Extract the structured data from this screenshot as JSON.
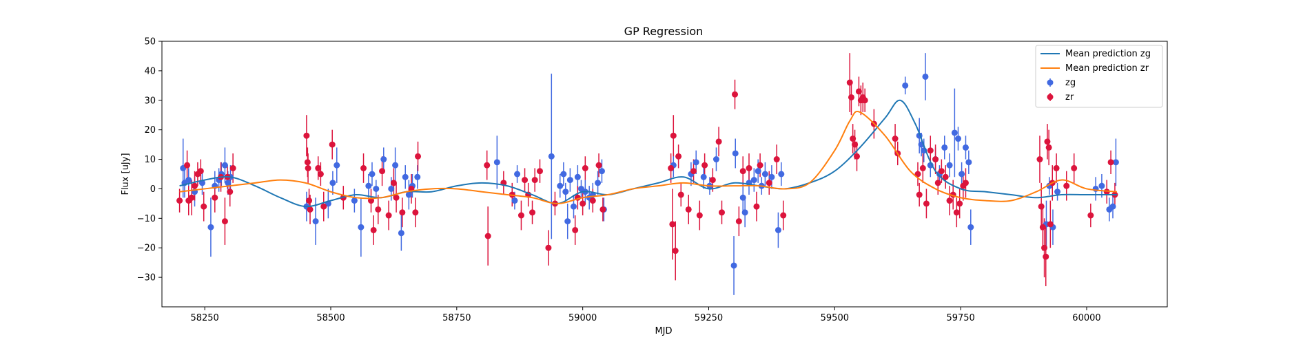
{
  "chart_data": {
    "type": "scatter",
    "title": "GP Regression",
    "xlabel": "MJD",
    "ylabel": "Flux [uJy]",
    "xlim": [
      58165,
      60160
    ],
    "ylim": [
      -40,
      50
    ],
    "xticks": [
      58250,
      58500,
      58750,
      59000,
      59250,
      59500,
      59750,
      60000
    ],
    "yticks": [
      -30,
      -20,
      -10,
      0,
      10,
      20,
      30,
      40,
      50
    ],
    "grid": false,
    "legend": {
      "position": "top-right",
      "entries": [
        "Mean prediction zg",
        "Mean prediction zr",
        "zg",
        "zr"
      ]
    },
    "colors": {
      "mean_zg": "#1f77b4",
      "mean_zr": "#ff7f0e",
      "zg": "#4169e1",
      "zr": "#dc143c"
    },
    "lines": [
      {
        "name": "Mean prediction zg",
        "color": "#1f77b4",
        "x": [
          58200,
          58250,
          58300,
          58350,
          58400,
          58450,
          58500,
          58550,
          58600,
          58650,
          58700,
          58750,
          58800,
          58850,
          58900,
          58950,
          59000,
          59050,
          59100,
          59150,
          59200,
          59250,
          59300,
          59350,
          59400,
          59450,
          59500,
          59550,
          59600,
          59630,
          59660,
          59700,
          59750,
          59800,
          59850,
          59900,
          59950,
          60000,
          60060
        ],
        "y": [
          1,
          3,
          4,
          1,
          -3,
          -6,
          -4,
          -2,
          -3,
          -1,
          -1,
          1,
          2,
          1,
          -2,
          -5,
          -1,
          -2,
          0,
          2,
          4,
          0,
          2,
          1,
          0,
          2,
          6,
          14,
          24,
          30,
          22,
          6,
          0,
          -1,
          -2,
          -3,
          -2,
          -2,
          -2
        ]
      },
      {
        "name": "Mean prediction zr",
        "color": "#ff7f0e",
        "x": [
          58200,
          58250,
          58300,
          58350,
          58400,
          58450,
          58500,
          58550,
          58600,
          58650,
          58700,
          58750,
          58800,
          58850,
          58900,
          58950,
          59000,
          59050,
          59100,
          59150,
          59200,
          59250,
          59300,
          59350,
          59400,
          59450,
          59500,
          59530,
          59550,
          59600,
          59650,
          59700,
          59750,
          59800,
          59850,
          59900,
          59950,
          60000,
          60060
        ],
        "y": [
          -1,
          0,
          1,
          2,
          3,
          2,
          -1,
          -3,
          -3,
          -1,
          0,
          0,
          -1,
          -2,
          -3,
          -5,
          -3,
          -2,
          0,
          1,
          2,
          1,
          1,
          1,
          0,
          2,
          13,
          23,
          26,
          18,
          6,
          0,
          -3,
          -4,
          -4,
          -1,
          3,
          0,
          -1
        ]
      }
    ],
    "series": [
      {
        "name": "zg",
        "color": "#4169e1",
        "points": [
          [
            58207,
            7,
            10
          ],
          [
            58210,
            2,
            5
          ],
          [
            58218,
            3,
            4
          ],
          [
            58230,
            -1,
            5
          ],
          [
            58245,
            2,
            4
          ],
          [
            58262,
            -13,
            10
          ],
          [
            58270,
            1,
            5
          ],
          [
            58278,
            3,
            4
          ],
          [
            58283,
            5,
            4
          ],
          [
            58290,
            8,
            6
          ],
          [
            58296,
            2,
            4
          ],
          [
            58301,
            4,
            4
          ],
          [
            58452,
            -6,
            5
          ],
          [
            58470,
            -11,
            8
          ],
          [
            58495,
            -5,
            5
          ],
          [
            58504,
            2,
            4
          ],
          [
            58512,
            8,
            6
          ],
          [
            58547,
            -4,
            4
          ],
          [
            58560,
            -13,
            10
          ],
          [
            58575,
            1,
            4
          ],
          [
            58582,
            5,
            4
          ],
          [
            58590,
            0,
            3
          ],
          [
            58605,
            10,
            4
          ],
          [
            58620,
            0,
            4
          ],
          [
            58628,
            8,
            6
          ],
          [
            58640,
            -15,
            6
          ],
          [
            58648,
            4,
            4
          ],
          [
            58655,
            -2,
            5
          ],
          [
            58662,
            1,
            4
          ],
          [
            58672,
            4,
            4
          ],
          [
            58830,
            9,
            9
          ],
          [
            58865,
            -4,
            3
          ],
          [
            58870,
            5,
            3
          ],
          [
            58938,
            11,
            28
          ],
          [
            58955,
            1,
            4
          ],
          [
            58962,
            5,
            4
          ],
          [
            58966,
            -1,
            3
          ],
          [
            58970,
            -11,
            6
          ],
          [
            58975,
            3,
            4
          ],
          [
            58982,
            -6,
            4
          ],
          [
            58990,
            4,
            4
          ],
          [
            58997,
            0,
            3
          ],
          [
            59005,
            -1,
            4
          ],
          [
            59013,
            -3,
            4
          ],
          [
            59020,
            -2,
            4
          ],
          [
            59030,
            2,
            4
          ],
          [
            59038,
            6,
            4
          ],
          [
            59042,
            -7,
            4
          ],
          [
            59180,
            8,
            4
          ],
          [
            59215,
            5,
            4
          ],
          [
            59225,
            9,
            4
          ],
          [
            59240,
            4,
            4
          ],
          [
            59252,
            1,
            3
          ],
          [
            59265,
            10,
            4
          ],
          [
            59300,
            -26,
            10
          ],
          [
            59303,
            12,
            5
          ],
          [
            59318,
            -3,
            5
          ],
          [
            59322,
            -8,
            5
          ],
          [
            59330,
            2,
            4
          ],
          [
            59340,
            3,
            4
          ],
          [
            59348,
            6,
            4
          ],
          [
            59355,
            1,
            3
          ],
          [
            59362,
            5,
            4
          ],
          [
            59375,
            4,
            4
          ],
          [
            59388,
            -14,
            6
          ],
          [
            59394,
            5,
            4
          ],
          [
            59640,
            35,
            3
          ],
          [
            59680,
            38,
            8
          ],
          [
            59668,
            18,
            6
          ],
          [
            59672,
            15,
            4
          ],
          [
            59677,
            13,
            4
          ],
          [
            59690,
            8,
            4
          ],
          [
            59700,
            10,
            4
          ],
          [
            59708,
            5,
            3
          ],
          [
            59718,
            14,
            4
          ],
          [
            59728,
            8,
            4
          ],
          [
            59738,
            19,
            15
          ],
          [
            59745,
            17,
            4
          ],
          [
            59752,
            5,
            4
          ],
          [
            59760,
            14,
            4
          ],
          [
            59766,
            9,
            4
          ],
          [
            59770,
            -13,
            6
          ],
          [
            59920,
            -12,
            8
          ],
          [
            59926,
            1,
            3
          ],
          [
            59933,
            -13,
            6
          ],
          [
            59942,
            -1,
            3
          ],
          [
            60018,
            0,
            4
          ],
          [
            60030,
            1,
            4
          ],
          [
            60045,
            -7,
            4
          ],
          [
            60052,
            -6,
            4
          ],
          [
            60058,
            9,
            8
          ]
        ]
      },
      {
        "name": "zr",
        "color": "#dc143c",
        "points": [
          [
            58200,
            -4,
            4
          ],
          [
            58215,
            8,
            5
          ],
          [
            58218,
            -4,
            5
          ],
          [
            58224,
            -3,
            6
          ],
          [
            58230,
            1,
            5
          ],
          [
            58236,
            5,
            4
          ],
          [
            58242,
            6,
            4
          ],
          [
            58248,
            -6,
            5
          ],
          [
            58270,
            -3,
            5
          ],
          [
            58282,
            4,
            5
          ],
          [
            58290,
            -11,
            8
          ],
          [
            58295,
            4,
            4
          ],
          [
            58300,
            -1,
            5
          ],
          [
            58306,
            7,
            5
          ],
          [
            58452,
            18,
            7
          ],
          [
            58454,
            9,
            5
          ],
          [
            58455,
            7,
            5
          ],
          [
            58457,
            -4,
            4
          ],
          [
            58459,
            -7,
            5
          ],
          [
            58475,
            7,
            4
          ],
          [
            58480,
            5,
            4
          ],
          [
            58486,
            -6,
            5
          ],
          [
            58503,
            15,
            5
          ],
          [
            58525,
            -3,
            4
          ],
          [
            58565,
            7,
            5
          ],
          [
            58580,
            -4,
            4
          ],
          [
            58585,
            -14,
            5
          ],
          [
            58594,
            -7,
            5
          ],
          [
            58602,
            6,
            5
          ],
          [
            58615,
            -9,
            5
          ],
          [
            58625,
            2,
            5
          ],
          [
            58630,
            -3,
            5
          ],
          [
            58642,
            -8,
            5
          ],
          [
            58660,
            0,
            5
          ],
          [
            58668,
            -8,
            5
          ],
          [
            58673,
            11,
            5
          ],
          [
            58810,
            8,
            5
          ],
          [
            58812,
            -16,
            10
          ],
          [
            58843,
            2,
            4
          ],
          [
            58860,
            -2,
            4
          ],
          [
            58878,
            -9,
            5
          ],
          [
            58885,
            3,
            4
          ],
          [
            58892,
            -2,
            4
          ],
          [
            58900,
            -8,
            4
          ],
          [
            58905,
            3,
            4
          ],
          [
            58915,
            6,
            4
          ],
          [
            58932,
            -20,
            6
          ],
          [
            58945,
            -5,
            4
          ],
          [
            58985,
            -14,
            5
          ],
          [
            58990,
            -3,
            4
          ],
          [
            59000,
            -5,
            4
          ],
          [
            59005,
            7,
            4
          ],
          [
            59020,
            -4,
            4
          ],
          [
            59032,
            8,
            4
          ],
          [
            59040,
            -7,
            4
          ],
          [
            59175,
            7,
            5
          ],
          [
            59178,
            -12,
            12
          ],
          [
            59180,
            18,
            7
          ],
          [
            59184,
            -21,
            10
          ],
          [
            59190,
            11,
            4
          ],
          [
            59195,
            -2,
            4
          ],
          [
            59210,
            -7,
            5
          ],
          [
            59220,
            6,
            4
          ],
          [
            59232,
            -9,
            5
          ],
          [
            59242,
            8,
            4
          ],
          [
            59258,
            3,
            4
          ],
          [
            59270,
            16,
            5
          ],
          [
            59276,
            -8,
            4
          ],
          [
            59302,
            32,
            5
          ],
          [
            59310,
            -11,
            5
          ],
          [
            59318,
            6,
            5
          ],
          [
            59330,
            7,
            5
          ],
          [
            59345,
            -6,
            5
          ],
          [
            59352,
            8,
            4
          ],
          [
            59370,
            2,
            4
          ],
          [
            59385,
            10,
            5
          ],
          [
            59398,
            -9,
            5
          ],
          [
            59530,
            36,
            10
          ],
          [
            59533,
            31,
            6
          ],
          [
            59536,
            17,
            5
          ],
          [
            59540,
            15,
            5
          ],
          [
            59544,
            11,
            5
          ],
          [
            59548,
            33,
            5
          ],
          [
            59552,
            30,
            5
          ],
          [
            59556,
            31,
            5
          ],
          [
            59560,
            30,
            4
          ],
          [
            59578,
            22,
            5
          ],
          [
            59620,
            17,
            5
          ],
          [
            59625,
            12,
            4
          ],
          [
            59665,
            5,
            4
          ],
          [
            59668,
            -2,
            4
          ],
          [
            59675,
            7,
            5
          ],
          [
            59682,
            -5,
            5
          ],
          [
            59690,
            13,
            5
          ],
          [
            59700,
            10,
            5
          ],
          [
            59705,
            2,
            4
          ],
          [
            59712,
            6,
            4
          ],
          [
            59720,
            4,
            4
          ],
          [
            59728,
            -4,
            5
          ],
          [
            59735,
            -2,
            5
          ],
          [
            59742,
            -8,
            5
          ],
          [
            59748,
            -5,
            5
          ],
          [
            59755,
            1,
            5
          ],
          [
            59760,
            2,
            5
          ],
          [
            59907,
            10,
            8
          ],
          [
            59910,
            -6,
            8
          ],
          [
            59913,
            -13,
            8
          ],
          [
            59916,
            -20,
            10
          ],
          [
            59919,
            -23,
            10
          ],
          [
            59922,
            16,
            6
          ],
          [
            59925,
            14,
            6
          ],
          [
            59928,
            -12,
            8
          ],
          [
            59932,
            2,
            6
          ],
          [
            59940,
            7,
            5
          ],
          [
            59960,
            1,
            5
          ],
          [
            59975,
            7,
            5
          ],
          [
            60008,
            -9,
            4
          ],
          [
            60040,
            -1,
            4
          ],
          [
            60048,
            9,
            4
          ],
          [
            60056,
            -2,
            4
          ]
        ]
      }
    ]
  }
}
